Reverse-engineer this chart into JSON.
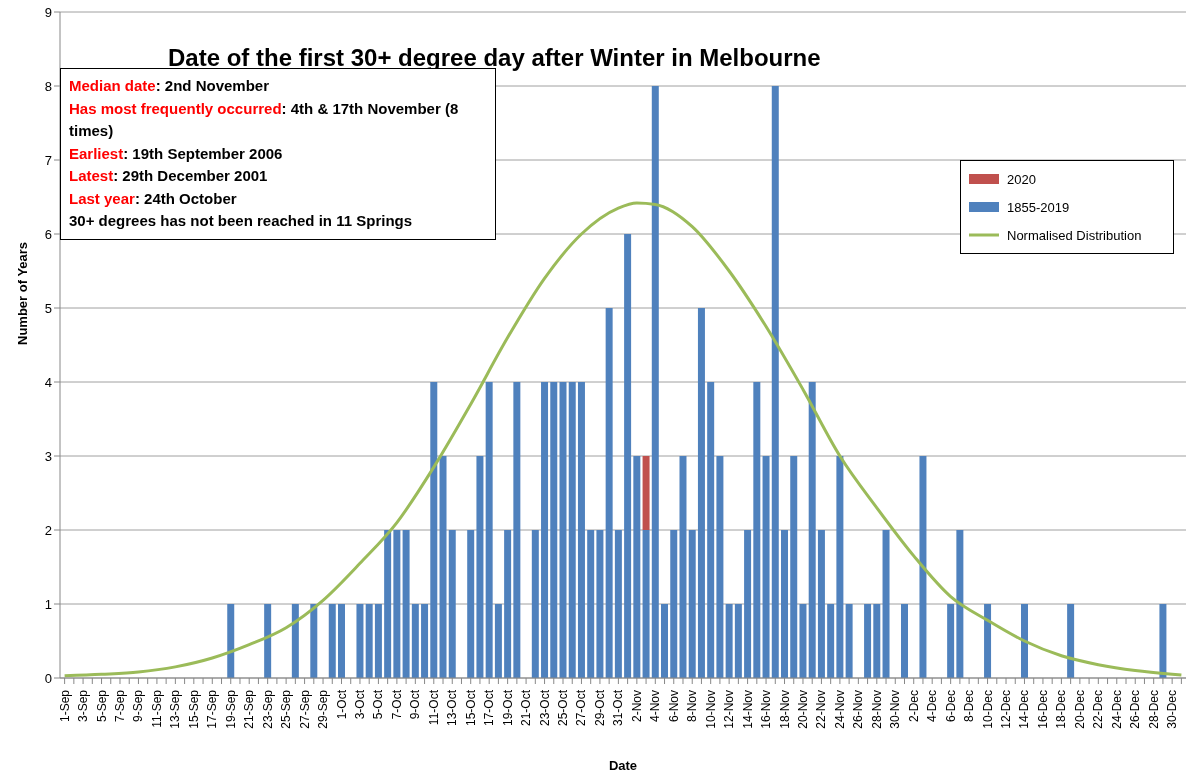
{
  "chart_data": {
    "type": "bar",
    "title": "Date of the first 30+ degree day after Winter in Melbourne",
    "xlabel": "Date",
    "ylabel": "Number of Years",
    "annotations": [
      "Median date: 2nd November",
      "Has most frequently occurred: 4th & 17th November (8 times)",
      "Earliest: 19th September 2006",
      "Latest: 29th December 2001",
      "Last year: 24th October",
      "30+ degrees has not been reached in 11 Springs"
    ],
    "categories": [
      "1-Sep",
      null,
      "3-Sep",
      null,
      "5-Sep",
      null,
      "7-Sep",
      null,
      "9-Sep",
      null,
      "11-Sep",
      null,
      "13-Sep",
      null,
      "15-Sep",
      null,
      "17-Sep",
      null,
      "19-Sep",
      null,
      "21-Sep",
      null,
      "23-Sep",
      null,
      "25-Sep",
      null,
      "27-Sep",
      null,
      "29-Sep",
      null,
      "1-Oct",
      null,
      "3-Oct",
      null,
      "5-Oct",
      null,
      "7-Oct",
      null,
      "9-Oct",
      null,
      "11-Oct",
      null,
      "13-Oct",
      null,
      "15-Oct",
      null,
      "17-Oct",
      null,
      "19-Oct",
      null,
      "21-Oct",
      null,
      "23-Oct",
      null,
      "25-Oct",
      null,
      "27-Oct",
      null,
      "29-Oct",
      null,
      "31-Oct",
      null,
      "2-Nov",
      null,
      "4-Nov",
      null,
      "6-Nov",
      null,
      "8-Nov",
      null,
      "10-Nov",
      null,
      "12-Nov",
      null,
      "14-Nov",
      null,
      "16-Nov",
      null,
      "18-Nov",
      null,
      "20-Nov",
      null,
      "22-Nov",
      null,
      "24-Nov",
      null,
      "26-Nov",
      null,
      "28-Nov",
      null,
      "30-Nov",
      null,
      "2-Dec",
      null,
      "4-Dec",
      null,
      "6-Dec",
      null,
      "8-Dec",
      null,
      "10-Dec",
      null,
      "12-Dec",
      null,
      "14-Dec",
      null,
      "16-Dec",
      null,
      "18-Dec",
      null,
      "20-Dec",
      null,
      "22-Dec",
      null,
      "24-Dec",
      null,
      "26-Dec",
      null,
      "28-Dec",
      null,
      "30-Dec",
      null
    ],
    "stacked": true,
    "ylim": [
      0,
      9
    ],
    "yticks": [
      0,
      1,
      2,
      3,
      4,
      5,
      6,
      7,
      8,
      9
    ],
    "grid": "y",
    "legend": "top right",
    "series": [
      {
        "name": "1855-2019",
        "color": "#4f81bd",
        "values": [
          0,
          0,
          0,
          0,
          0,
          0,
          0,
          0,
          0,
          0,
          0,
          0,
          0,
          0,
          0,
          0,
          0,
          0,
          1,
          0,
          0,
          0,
          1,
          0,
          0,
          1,
          0,
          1,
          0,
          1,
          1,
          0,
          1,
          1,
          1,
          2,
          2,
          2,
          1,
          1,
          4,
          3,
          2,
          0,
          2,
          3,
          4,
          1,
          2,
          4,
          0,
          2,
          4,
          4,
          4,
          4,
          4,
          2,
          2,
          5,
          2,
          6,
          3,
          2,
          8,
          1,
          2,
          3,
          2,
          5,
          4,
          3,
          1,
          1,
          2,
          4,
          3,
          8,
          2,
          3,
          1,
          4,
          2,
          1,
          3,
          1,
          0,
          1,
          1,
          2,
          0,
          1,
          0,
          3,
          0,
          0,
          1,
          2,
          0,
          0,
          1,
          0,
          0,
          0,
          1,
          0,
          0,
          0,
          0,
          1,
          0,
          0,
          0,
          0,
          0,
          0,
          0,
          0,
          0,
          1,
          0,
          0
        ]
      },
      {
        "name": "2020",
        "color": "#c0504d",
        "values": [
          null,
          null,
          null,
          null,
          null,
          null,
          null,
          null,
          null,
          null,
          null,
          null,
          null,
          null,
          null,
          null,
          null,
          null,
          null,
          null,
          null,
          null,
          null,
          null,
          null,
          null,
          null,
          null,
          null,
          null,
          null,
          null,
          null,
          null,
          null,
          null,
          null,
          null,
          null,
          null,
          null,
          null,
          null,
          null,
          null,
          null,
          null,
          null,
          null,
          null,
          null,
          null,
          null,
          null,
          null,
          null,
          null,
          null,
          null,
          null,
          null,
          null,
          null,
          1,
          null,
          null,
          null,
          null,
          null,
          null,
          null,
          null,
          null,
          null,
          null,
          null,
          null,
          null,
          null,
          null,
          null,
          null,
          null,
          null,
          null,
          null,
          null,
          null,
          null,
          null,
          null,
          null,
          null,
          null,
          null,
          null,
          null,
          null,
          null,
          null,
          null,
          null,
          null,
          null,
          null,
          null,
          null,
          null,
          null,
          null,
          null,
          null,
          null,
          null,
          null,
          null,
          null,
          null,
          null,
          null,
          null,
          null
        ]
      },
      {
        "name": "Normalised Distribution",
        "type": "line",
        "color": "#9bbb59",
        "values": [
          0.03,
          null,
          null,
          null,
          0.05,
          null,
          null,
          null,
          0.08,
          null,
          null,
          null,
          0.15,
          null,
          null,
          null,
          0.27,
          null,
          null,
          null,
          0.45,
          null,
          null,
          null,
          0.68,
          null,
          null,
          null,
          1.05,
          null,
          null,
          null,
          1.55,
          null,
          null,
          null,
          2.1,
          null,
          null,
          null,
          2.85,
          null,
          null,
          null,
          3.7,
          null,
          null,
          null,
          4.6,
          null,
          null,
          null,
          5.4,
          null,
          null,
          null,
          6.0,
          null,
          null,
          null,
          6.35,
          null,
          6.42,
          null,
          6.4,
          null,
          null,
          null,
          6.1,
          null,
          null,
          null,
          5.5,
          null,
          null,
          null,
          4.75,
          null,
          null,
          null,
          3.9,
          null,
          null,
          null,
          3.0,
          null,
          null,
          null,
          2.3,
          null,
          null,
          null,
          1.65,
          null,
          null,
          null,
          1.1,
          null,
          null,
          null,
          0.78,
          null,
          null,
          null,
          0.5,
          null,
          null,
          null,
          0.3,
          null,
          null,
          null,
          0.18,
          null,
          null,
          null,
          0.1,
          null,
          null,
          null,
          0.05,
          0.04
        ]
      }
    ]
  }
}
